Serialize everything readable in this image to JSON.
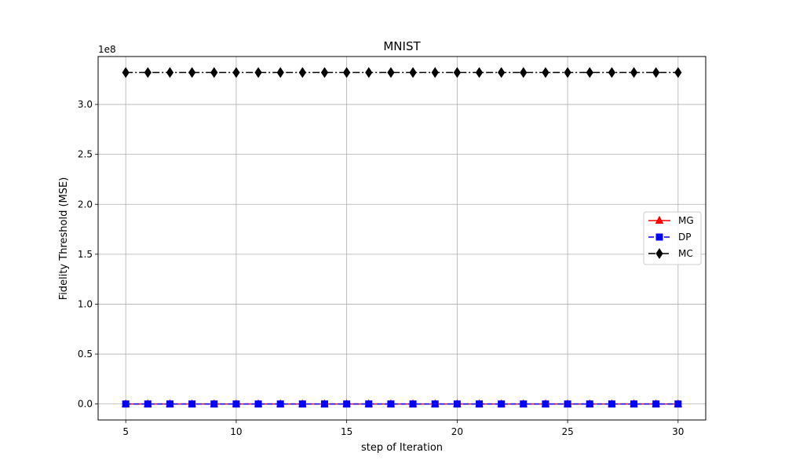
{
  "chart_data": {
    "type": "line",
    "title": "MNIST",
    "xlabel": "step of Iteration",
    "ylabel": "Fidelity Threshold (MSE)",
    "y_scale_label": "1e8",
    "x": [
      5,
      6,
      7,
      8,
      9,
      10,
      11,
      12,
      13,
      14,
      15,
      16,
      17,
      18,
      19,
      20,
      21,
      22,
      23,
      24,
      25,
      26,
      27,
      28,
      29,
      30
    ],
    "xlim": [
      3.75,
      31.25
    ],
    "ylim": [
      -0.16,
      3.48
    ],
    "y_units_note": "values in units of 1e8",
    "xticks": [
      5,
      10,
      15,
      20,
      25,
      30
    ],
    "yticks": [
      0.0,
      0.5,
      1.0,
      1.5,
      2.0,
      2.5,
      3.0
    ],
    "ytick_labels": [
      "0.0",
      "0.5",
      "1.0",
      "1.5",
      "2.0",
      "2.5",
      "3.0"
    ],
    "grid": true,
    "legend_position": "center-right",
    "series": [
      {
        "name": "MG",
        "color": "#ff0000",
        "marker": "triangle",
        "linestyle": "solid",
        "values": [
          0,
          0,
          0,
          0,
          0,
          0,
          0,
          0,
          0,
          0,
          0,
          0,
          0,
          0,
          0,
          0,
          0,
          0,
          0,
          0,
          0,
          0,
          0,
          0,
          0,
          0
        ]
      },
      {
        "name": "DP",
        "color": "#0000ff",
        "marker": "square",
        "linestyle": "dashed",
        "values": [
          0,
          0,
          0,
          0,
          0,
          0,
          0,
          0,
          0,
          0,
          0,
          0,
          0,
          0,
          0,
          0,
          0,
          0,
          0,
          0,
          0,
          0,
          0,
          0,
          0,
          0
        ]
      },
      {
        "name": "MC",
        "color": "#000000",
        "marker": "diamond",
        "linestyle": "dashdot",
        "values": [
          3.32,
          3.32,
          3.32,
          3.32,
          3.32,
          3.32,
          3.32,
          3.32,
          3.32,
          3.32,
          3.32,
          3.32,
          3.32,
          3.32,
          3.32,
          3.32,
          3.32,
          3.32,
          3.32,
          3.32,
          3.32,
          3.32,
          3.32,
          3.32,
          3.32,
          3.32
        ]
      }
    ]
  }
}
